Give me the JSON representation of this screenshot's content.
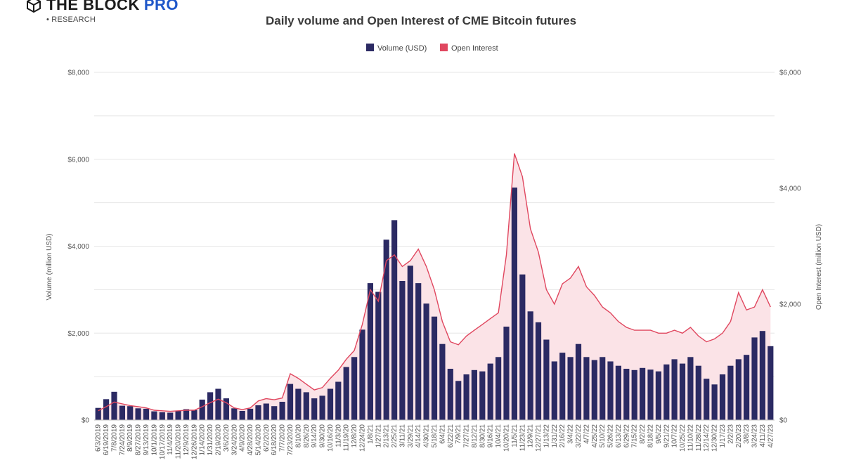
{
  "brand": {
    "name": "THE BLOCK",
    "pro": "PRO",
    "sub": "• RESEARCH"
  },
  "chart_data": {
    "type": "bar",
    "title": "Daily volume and Open Interest of CME Bitcoin futures",
    "ylabel": "Volume (million USD)",
    "y2label": "Open Interest (million USD)",
    "ylim": [
      0,
      8000
    ],
    "y2lim": [
      0,
      6000
    ],
    "yticks": [
      "$0",
      "$2,000",
      "$4,000",
      "$6,000",
      "$8,000"
    ],
    "y2ticks": [
      "$0",
      "$2,000",
      "$4,000",
      "$6,000"
    ],
    "legend_position": "top-center",
    "grid": true,
    "colors": {
      "volume": "#2b2a63",
      "open_interest": "#e0475f",
      "oi_fill": "#fbe3e7"
    },
    "categories": [
      "6/3/2019",
      "6/19/2019",
      "7/8/2019",
      "7/24/2019",
      "8/9/2019",
      "8/27/2019",
      "9/13/2019",
      "10/1/2019",
      "10/17/2019",
      "11/4/2019",
      "11/20/2019",
      "12/9/2019",
      "12/26/2019",
      "1/14/2020",
      "1/31/2020",
      "2/19/2020",
      "3/6/2020",
      "3/24/2020",
      "4/9/2020",
      "4/28/2020",
      "5/14/2020",
      "6/2/2020",
      "6/18/2020",
      "7/7/2020",
      "7/23/2020",
      "8/10/20",
      "8/26/20",
      "9/14/20",
      "9/30/20",
      "10/16/20",
      "11/3/20",
      "11/19/20",
      "12/8/20",
      "12/24/20",
      "1/8/21",
      "1/27/21",
      "2/13/21",
      "2/25/21",
      "3/11/21",
      "3/29/21",
      "4/14/21",
      "4/30/21",
      "5/18/21",
      "6/4/21",
      "6/22/21",
      "7/9/21",
      "7/27/21",
      "8/12/21",
      "8/30/21",
      "9/16/21",
      "10/4/21",
      "10/20/21",
      "11/5/21",
      "11/23/21",
      "12/9/21",
      "12/27/21",
      "1/13/22",
      "1/31/22",
      "2/16/22",
      "3/4/22",
      "3/22/22",
      "4/7/22",
      "4/25/22",
      "5/10/22",
      "5/26/22",
      "6/13/22",
      "6/29/22",
      "7/15/22",
      "8/2/22",
      "8/18/22",
      "9/5/22",
      "9/21/22",
      "10/7/22",
      "10/25/22",
      "11/10/22",
      "11/28/22",
      "12/14/22",
      "12/30/22",
      "1/17/23",
      "2/2/23",
      "2/20/23",
      "3/8/23",
      "3/24/23",
      "4/11/23",
      "4/27/23"
    ],
    "series": [
      {
        "name": "Volume (USD)",
        "type": "bar",
        "values": [
          280,
          480,
          650,
          330,
          320,
          270,
          260,
          200,
          180,
          170,
          210,
          250,
          230,
          470,
          640,
          720,
          500,
          270,
          210,
          260,
          340,
          380,
          320,
          420,
          830,
          720,
          640,
          500,
          560,
          720,
          880,
          1220,
          1450,
          2080,
          3150,
          2950,
          4150,
          4600,
          3200,
          3550,
          3150,
          2680,
          2380,
          1750,
          1180,
          900,
          1050,
          1150,
          1120,
          1300,
          1450,
          2150,
          5350,
          3350,
          2500,
          2250,
          1850,
          1350,
          1550,
          1450,
          1750,
          1450,
          1380,
          1450,
          1350,
          1250,
          1180,
          1150,
          1200,
          1160,
          1120,
          1280,
          1400,
          1300,
          1450,
          1250,
          950,
          820,
          1050,
          1250,
          1400,
          1500,
          1900,
          2050,
          1700
        ]
      },
      {
        "name": "Open Interest",
        "type": "area-line",
        "values": [
          160,
          230,
          310,
          280,
          250,
          230,
          210,
          170,
          160,
          150,
          160,
          170,
          170,
          230,
          300,
          360,
          300,
          210,
          180,
          210,
          330,
          370,
          350,
          380,
          800,
          720,
          620,
          520,
          560,
          720,
          860,
          1050,
          1200,
          1650,
          2250,
          2050,
          2750,
          2850,
          2650,
          2750,
          2950,
          2650,
          2250,
          1700,
          1350,
          1300,
          1450,
          1550,
          1650,
          1750,
          1850,
          2850,
          4600,
          4200,
          3300,
          2900,
          2250,
          2000,
          2350,
          2450,
          2650,
          2300,
          2150,
          1950,
          1850,
          1700,
          1600,
          1550,
          1550,
          1550,
          1500,
          1500,
          1550,
          1500,
          1600,
          1450,
          1350,
          1400,
          1500,
          1700,
          2200,
          1900,
          1950,
          2250,
          1950
        ]
      }
    ]
  }
}
